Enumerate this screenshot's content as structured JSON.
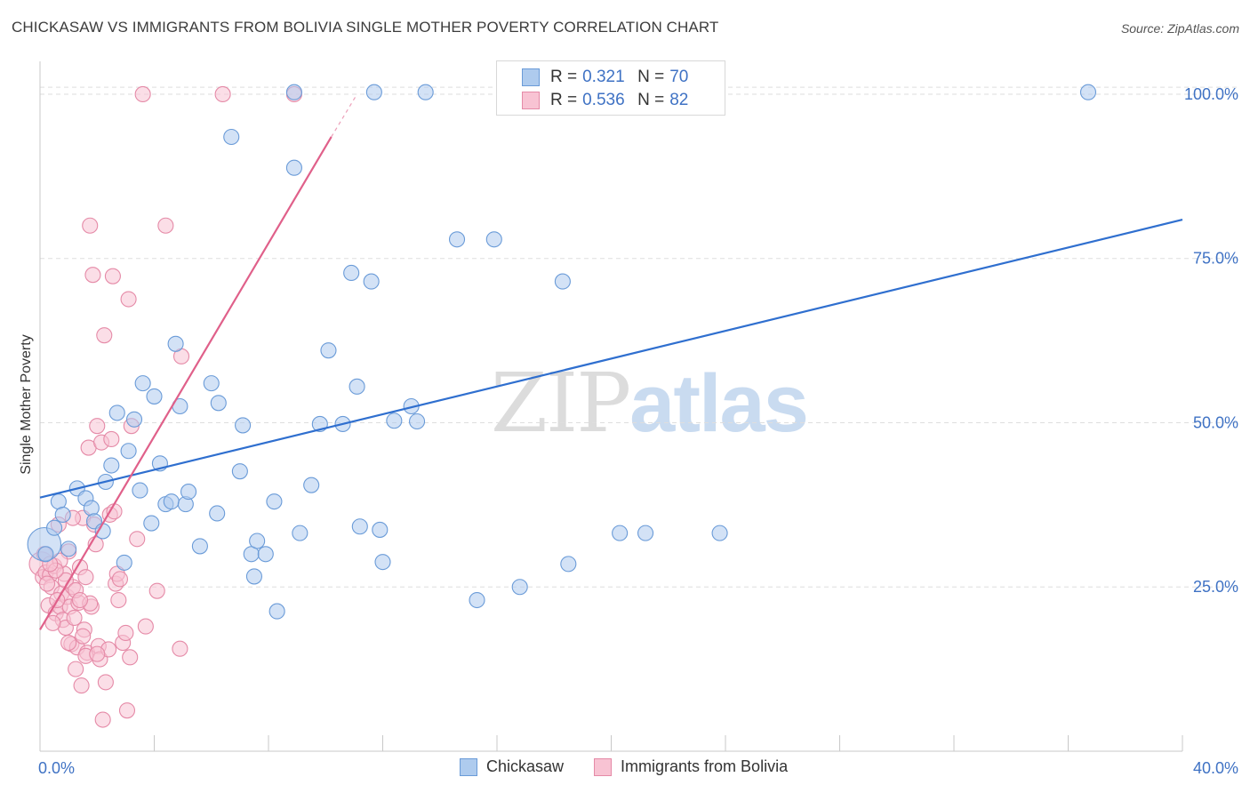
{
  "title": "CHICKASAW VS IMMIGRANTS FROM BOLIVIA SINGLE MOTHER POVERTY CORRELATION CHART",
  "source": "Source: ZipAtlas.com",
  "watermark": {
    "zip": "ZIP",
    "atlas": "atlas"
  },
  "colors": {
    "blue_fill": "#aecbee",
    "blue_stroke": "#6a9bd8",
    "blue_line": "#2f6fcf",
    "pink_fill": "#f8c3d3",
    "pink_stroke": "#e58aa7",
    "pink_line": "#e0608a",
    "axis_text": "#3f72c4"
  },
  "legend": {
    "rows": [
      {
        "r_label": "R =",
        "r_value": "0.321",
        "n_label": "N =",
        "n_value": "70"
      },
      {
        "r_label": "R =",
        "r_value": "0.536",
        "n_label": "N =",
        "n_value": "82"
      }
    ]
  },
  "bottom_legend": [
    "Chickasaw",
    "Immigrants from Bolivia"
  ],
  "chart_data": {
    "type": "scatter",
    "title": "CHICKASAW VS IMMIGRANTS FROM BOLIVIA SINGLE MOTHER POVERTY CORRELATION CHART",
    "xlabel": "",
    "ylabel": "Single Mother Poverty",
    "xlim": [
      0,
      40
    ],
    "ylim": [
      0,
      105
    ],
    "x_tick_labels": [
      "0.0%",
      "40.0%"
    ],
    "y_tick_labels": [
      "25.0%",
      "50.0%",
      "75.0%",
      "100.0%"
    ],
    "y_ticks": [
      25,
      50,
      75,
      100
    ],
    "grid": true,
    "legend_position": "top-center",
    "series": [
      {
        "name": "Chickasaw",
        "r": 0.321,
        "n": 70,
        "trend": {
          "x": [
            0,
            40
          ],
          "y": [
            38.6,
            80.9
          ]
        },
        "points": [
          [
            0.15,
            31.5,
            2.2
          ],
          [
            0.2,
            30.0,
            1
          ],
          [
            0.5,
            34.0,
            1
          ],
          [
            0.65,
            38.0,
            1
          ],
          [
            0.8,
            36.0,
            1
          ],
          [
            1.0,
            30.8,
            1
          ],
          [
            1.3,
            40.0,
            1
          ],
          [
            1.6,
            38.5,
            1
          ],
          [
            1.8,
            37.0,
            1
          ],
          [
            1.9,
            35.0,
            1
          ],
          [
            2.2,
            33.5,
            1
          ],
          [
            2.3,
            41.0,
            1
          ],
          [
            2.5,
            43.5,
            1
          ],
          [
            2.7,
            51.5,
            1
          ],
          [
            2.95,
            28.7,
            1
          ],
          [
            3.1,
            45.7,
            1
          ],
          [
            3.3,
            50.5,
            1
          ],
          [
            3.5,
            39.7,
            1
          ],
          [
            3.6,
            56.0,
            1
          ],
          [
            3.9,
            34.7,
            1
          ],
          [
            4.0,
            54.0,
            1
          ],
          [
            4.2,
            43.8,
            1
          ],
          [
            4.4,
            37.6,
            1
          ],
          [
            4.6,
            38.0,
            1
          ],
          [
            4.75,
            62.0,
            1
          ],
          [
            4.9,
            52.5,
            1
          ],
          [
            5.1,
            37.6,
            1
          ],
          [
            5.2,
            39.5,
            1
          ],
          [
            5.6,
            31.2,
            1
          ],
          [
            6.0,
            56.0,
            1
          ],
          [
            6.2,
            36.2,
            1
          ],
          [
            6.25,
            53.0,
            1
          ],
          [
            6.7,
            93.5,
            1
          ],
          [
            7.0,
            42.6,
            1
          ],
          [
            7.1,
            49.6,
            1
          ],
          [
            7.4,
            30.0,
            1
          ],
          [
            7.5,
            26.6,
            1
          ],
          [
            7.6,
            32.0,
            1
          ],
          [
            7.9,
            30.0,
            1
          ],
          [
            8.2,
            38.0,
            1
          ],
          [
            8.3,
            21.3,
            1
          ],
          [
            8.9,
            88.8,
            1
          ],
          [
            8.9,
            100.3,
            1
          ],
          [
            9.1,
            33.2,
            1
          ],
          [
            9.5,
            40.5,
            1
          ],
          [
            9.8,
            49.8,
            1
          ],
          [
            10.1,
            61.0,
            1
          ],
          [
            10.6,
            49.8,
            1
          ],
          [
            10.9,
            72.8,
            1
          ],
          [
            11.1,
            55.5,
            1
          ],
          [
            11.2,
            34.2,
            1
          ],
          [
            11.6,
            71.5,
            1
          ],
          [
            11.7,
            100.3,
            1
          ],
          [
            11.9,
            33.7,
            1
          ],
          [
            12.0,
            28.8,
            1
          ],
          [
            12.4,
            50.3,
            1
          ],
          [
            13.0,
            52.5,
            1
          ],
          [
            13.2,
            50.2,
            1
          ],
          [
            13.5,
            100.3,
            1
          ],
          [
            14.6,
            77.9,
            1
          ],
          [
            15.3,
            23.0,
            1
          ],
          [
            15.9,
            77.9,
            1
          ],
          [
            16.8,
            25.0,
            1
          ],
          [
            18.3,
            71.5,
            1
          ],
          [
            18.5,
            28.5,
            1
          ],
          [
            20.3,
            33.2,
            1
          ],
          [
            21.2,
            33.2,
            1
          ],
          [
            23.8,
            33.2,
            1
          ],
          [
            36.7,
            100.3,
            1
          ]
        ]
      },
      {
        "name": "Immigrants from Bolivia",
        "r": 0.536,
        "n": 82,
        "trend": {
          "x": [
            0,
            10.2
          ],
          "y": [
            18.5,
            93.5
          ]
        },
        "trend_dashed": {
          "x": [
            10.2,
            11.1
          ],
          "y": [
            93.5,
            100.0
          ]
        },
        "points": [
          [
            0.05,
            28.5,
            1.6
          ],
          [
            0.1,
            26.5,
            1
          ],
          [
            0.15,
            30.0,
            1
          ],
          [
            0.2,
            27.2,
            1
          ],
          [
            0.3,
            22.2,
            1
          ],
          [
            0.35,
            26.8,
            1
          ],
          [
            0.4,
            25.0,
            1
          ],
          [
            0.5,
            28.2,
            1
          ],
          [
            0.55,
            21.0,
            1
          ],
          [
            0.65,
            34.5,
            1
          ],
          [
            0.7,
            22.0,
            1
          ],
          [
            0.75,
            24.0,
            1
          ],
          [
            0.8,
            20.0,
            1
          ],
          [
            0.85,
            27.0,
            1
          ],
          [
            0.9,
            18.8,
            1
          ],
          [
            0.95,
            23.5,
            1
          ],
          [
            1.0,
            30.4,
            1
          ],
          [
            1.05,
            22.0,
            1
          ],
          [
            1.1,
            16.3,
            1
          ],
          [
            1.15,
            25.0,
            1
          ],
          [
            1.2,
            20.3,
            1
          ],
          [
            1.25,
            12.5,
            1
          ],
          [
            1.3,
            15.8,
            1
          ],
          [
            1.35,
            22.6,
            1
          ],
          [
            1.4,
            28.0,
            1
          ],
          [
            1.45,
            10.0,
            1
          ],
          [
            1.5,
            35.5,
            1
          ],
          [
            1.55,
            18.5,
            1
          ],
          [
            1.6,
            26.5,
            1
          ],
          [
            1.65,
            15.0,
            1
          ],
          [
            1.7,
            46.2,
            1
          ],
          [
            1.75,
            80.0,
            1
          ],
          [
            1.8,
            22.0,
            1
          ],
          [
            1.85,
            72.5,
            1
          ],
          [
            1.9,
            34.5,
            1
          ],
          [
            1.95,
            31.5,
            1
          ],
          [
            2.0,
            49.5,
            1
          ],
          [
            2.05,
            16.0,
            1
          ],
          [
            2.1,
            14.0,
            1
          ],
          [
            2.15,
            47.0,
            1
          ],
          [
            2.2,
            4.8,
            1
          ],
          [
            2.25,
            63.3,
            1
          ],
          [
            2.3,
            10.5,
            1
          ],
          [
            2.4,
            15.5,
            1
          ],
          [
            2.45,
            36.0,
            1
          ],
          [
            2.5,
            47.5,
            1
          ],
          [
            2.55,
            72.3,
            1
          ],
          [
            2.6,
            36.5,
            1
          ],
          [
            2.65,
            25.5,
            1
          ],
          [
            2.7,
            27.0,
            1
          ],
          [
            2.75,
            23.0,
            1
          ],
          [
            2.8,
            26.2,
            1
          ],
          [
            2.9,
            16.5,
            1
          ],
          [
            3.0,
            18.0,
            1
          ],
          [
            3.05,
            6.2,
            1
          ],
          [
            3.1,
            68.8,
            1
          ],
          [
            3.15,
            14.3,
            1
          ],
          [
            3.2,
            49.5,
            1
          ],
          [
            3.4,
            32.3,
            1
          ],
          [
            3.6,
            100.0,
            1
          ],
          [
            3.7,
            19.0,
            1
          ],
          [
            4.1,
            24.4,
            1
          ],
          [
            4.4,
            80.0,
            1
          ],
          [
            4.9,
            15.6,
            1
          ],
          [
            4.95,
            60.1,
            1
          ],
          [
            6.4,
            100.0,
            1
          ],
          [
            8.9,
            100.0,
            1
          ],
          [
            0.6,
            23.0,
            1
          ],
          [
            0.45,
            19.5,
            1
          ],
          [
            1.15,
            35.5,
            1
          ],
          [
            0.25,
            25.5,
            1
          ],
          [
            1.0,
            16.5,
            1
          ],
          [
            1.5,
            17.5,
            1
          ],
          [
            1.6,
            14.5,
            1
          ],
          [
            2.0,
            14.8,
            1
          ],
          [
            0.9,
            26.0,
            1
          ],
          [
            1.25,
            24.5,
            1
          ],
          [
            0.7,
            29.0,
            1
          ],
          [
            0.55,
            27.5,
            1
          ],
          [
            1.75,
            22.5,
            1
          ],
          [
            1.4,
            23.0,
            1
          ],
          [
            0.35,
            28.5,
            1
          ]
        ]
      }
    ]
  }
}
